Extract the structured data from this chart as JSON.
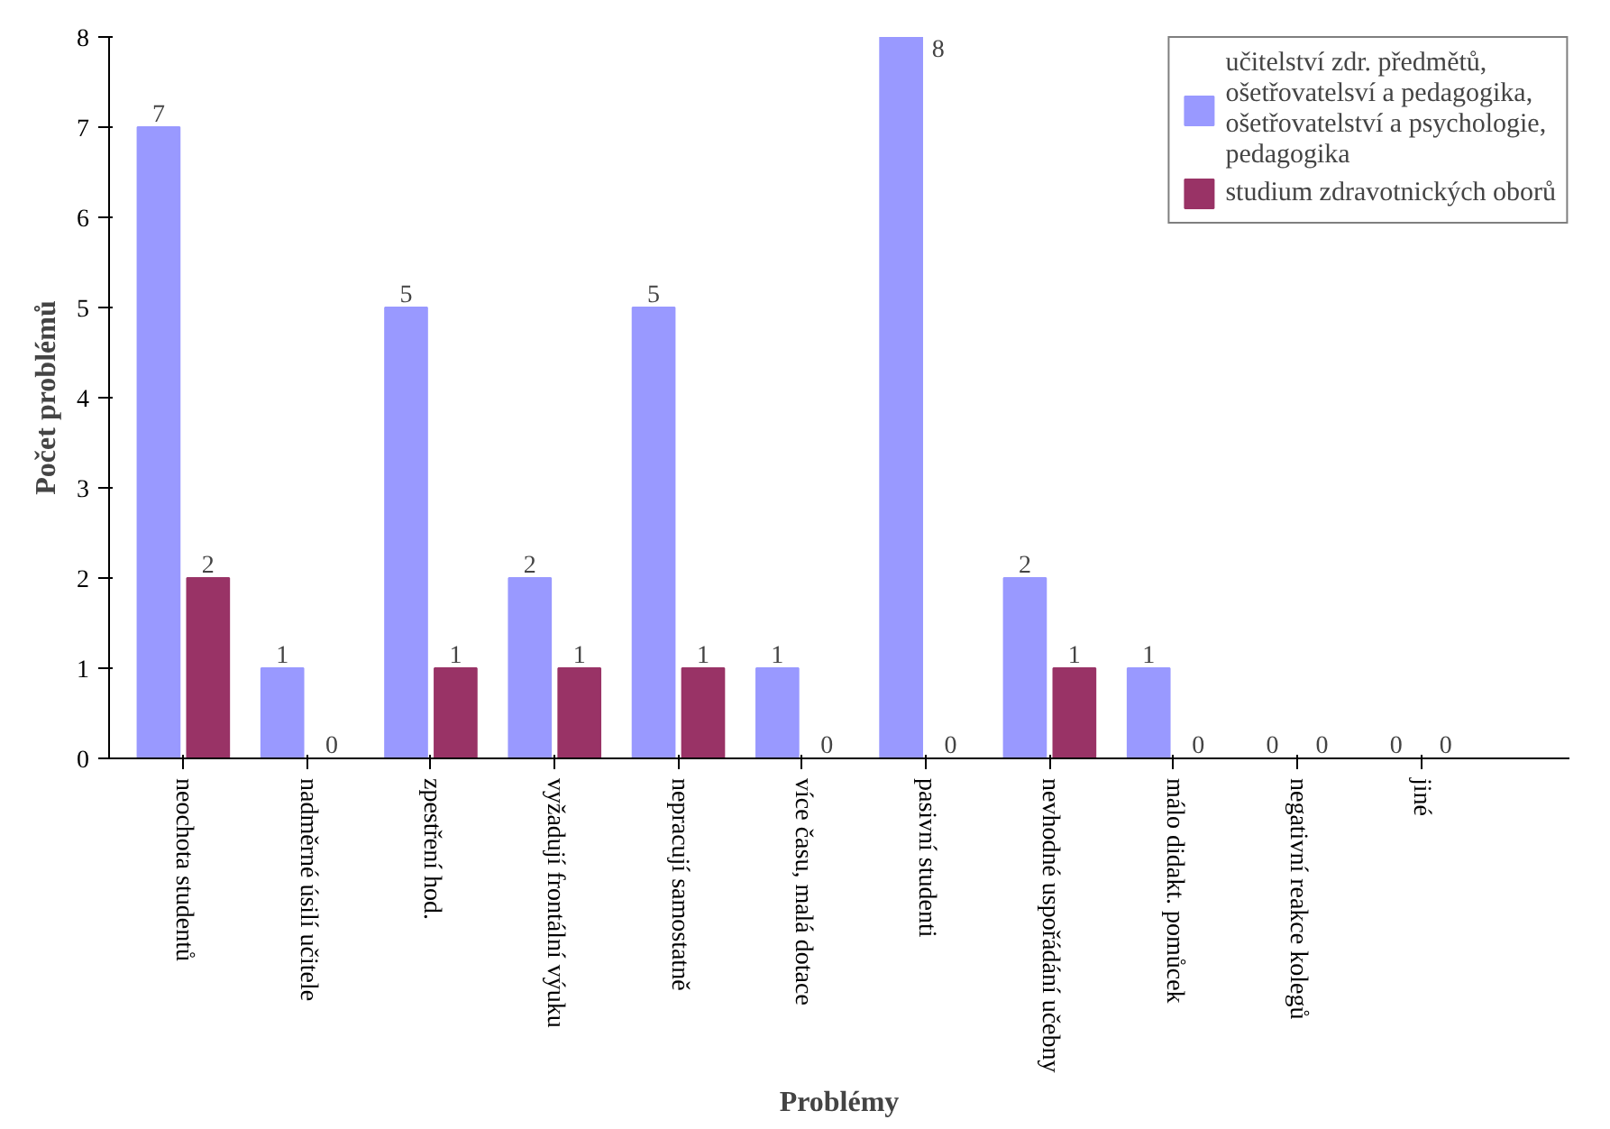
{
  "chart_data": {
    "type": "bar",
    "xlabel": "Problémy",
    "ylabel": "Počet problémů",
    "categories": [
      "neochota studentů",
      "nadměrné úsilí učitele",
      "zpestření hod.",
      "vyžadují frontální výuku",
      "nepracují samostatně",
      "více času, malá dotace",
      "pasivní studenti",
      "nevhodné uspořádání učebny",
      "málo didakt. pomůcek",
      "negativní reakce kolegů",
      "jiné"
    ],
    "series": [
      {
        "name": "učitelství zdr. předmětů, ošetřovatelsví a pedagogika, ošetřovatelství a psychologie, pedagogika",
        "color": "#9999ff",
        "values": [
          7,
          1,
          5,
          2,
          5,
          1,
          8,
          2,
          1,
          0,
          0
        ]
      },
      {
        "name": "studium zdravotnických oborů",
        "color": "#993366",
        "values": [
          2,
          0,
          1,
          1,
          1,
          0,
          0,
          1,
          0,
          0,
          0
        ]
      }
    ],
    "ylim": [
      0,
      8
    ],
    "yticks": [
      0,
      1,
      2,
      3,
      4,
      5,
      6,
      7,
      8
    ],
    "data_labels": true,
    "legend": "top right",
    "grid": false
  }
}
